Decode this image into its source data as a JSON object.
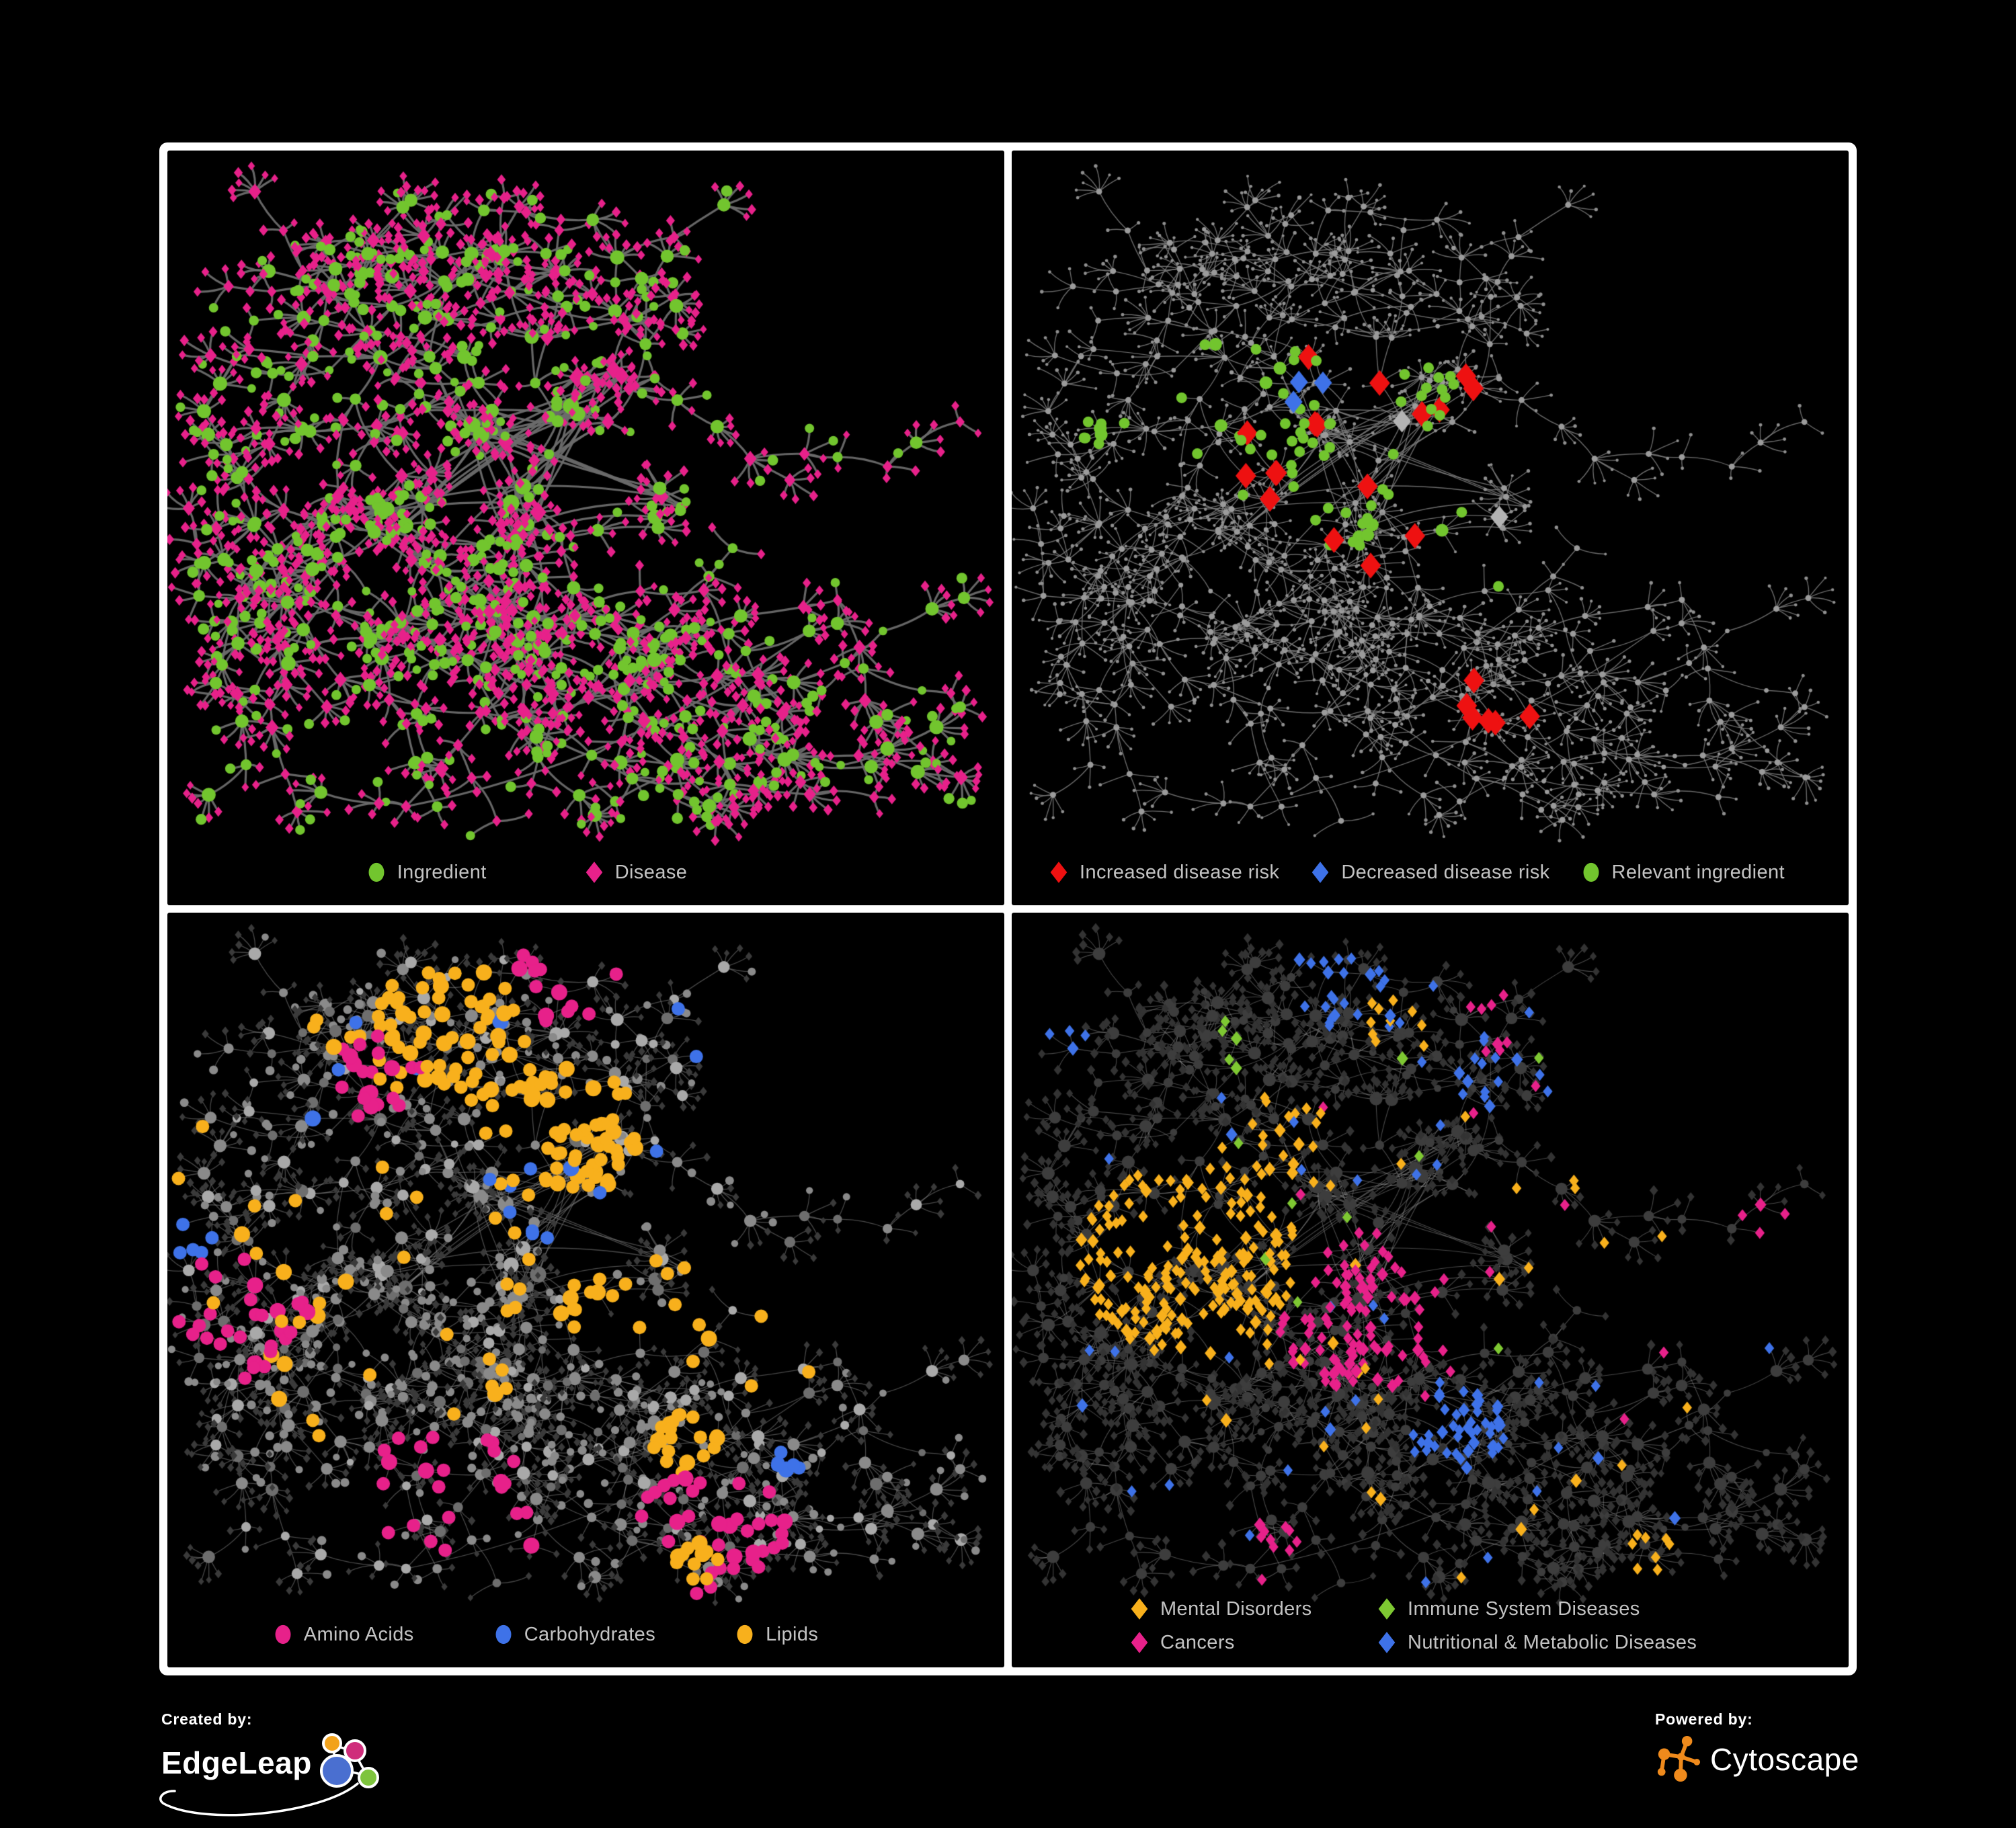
{
  "page": {
    "background": "#000000",
    "frame_color": "#ffffff",
    "legend_text_color": "#c3c3c3"
  },
  "panels": [
    {
      "name": "ingredient-disease-network",
      "legend": [
        {
          "shape": "circle",
          "color": "#72c52e",
          "label": "Ingredient"
        },
        {
          "shape": "diamond",
          "color": "#e7218a",
          "label": "Disease"
        }
      ]
    },
    {
      "name": "disease-risk-network",
      "legend": [
        {
          "shape": "diamond",
          "color": "#ee1111",
          "label": "Increased disease risk"
        },
        {
          "shape": "diamond",
          "color": "#3e72e8",
          "label": "Decreased disease risk"
        },
        {
          "shape": "circle",
          "color": "#72c52e",
          "label": "Relevant ingredient"
        }
      ]
    },
    {
      "name": "nutrient-class-network",
      "legend": [
        {
          "shape": "circle",
          "color": "#e7218a",
          "label": "Amino Acids"
        },
        {
          "shape": "circle",
          "color": "#3e72e8",
          "label": "Carbohydrates"
        },
        {
          "shape": "circle",
          "color": "#f8b01c",
          "label": "Lipids"
        }
      ]
    },
    {
      "name": "disease-class-network",
      "legend": [
        {
          "shape": "diamond",
          "color": "#f8b01c",
          "label": "Mental Disorders"
        },
        {
          "shape": "diamond",
          "color": "#7ec832",
          "label": "Immune System Diseases"
        },
        {
          "shape": "diamond",
          "color": "#e7218a",
          "label": "Cancers"
        },
        {
          "shape": "diamond",
          "color": "#3e72e8",
          "label": "Nutritional & Metabolic Diseases"
        }
      ]
    }
  ],
  "footer": {
    "created_by_label": "Created by:",
    "created_by_name": "EdgeLeap",
    "powered_by_label": "Powered by:",
    "powered_by_name": "Cytoscape",
    "edgeleap_colors": {
      "orange": "#f2a21b",
      "magenta": "#cf2d7b",
      "blue": "#4a6fd0",
      "green": "#7ec43d",
      "stroke": "#ffffff"
    },
    "cytoscape_color": "#ef8a1c"
  },
  "network": {
    "graph": {
      "seed": 1337,
      "cores": [
        [
          0.37,
          0.36,
          7,
          0.11
        ],
        [
          0.52,
          0.31,
          8,
          0.1
        ],
        [
          0.45,
          0.48,
          7,
          0.11
        ],
        [
          0.29,
          0.49,
          6,
          0.1
        ],
        [
          0.61,
          0.46,
          4,
          0.08
        ]
      ],
      "branches": 15,
      "cross_links": 7
    },
    "panel_styles": [
      {
        "seed": 11,
        "edge": {
          "color": "#6b6b6b",
          "width": 3.2,
          "alpha": 0.95
        },
        "hub": {
          "size_min": 6,
          "size_max": 15,
          "variants": [
            {
              "shape": "circle",
              "color": "#72c52e",
              "p": 0.58
            },
            {
              "shape": "diamond",
              "color": "#e7218a",
              "p": 0.42
            }
          ]
        },
        "leaf": {
          "size": 7.5,
          "variants": [
            {
              "shape": "diamond",
              "color": "#e7218a",
              "p": 0.84
            },
            {
              "shape": "circle",
              "color": "#72c52e",
              "p": 0.16
            }
          ]
        },
        "overlays": []
      },
      {
        "seed": 22,
        "edge": {
          "color": "#7d7d7d",
          "width": 1.4,
          "alpha": 0.85
        },
        "hub": {
          "size_min": 3,
          "size_max": 4.5,
          "variants": [
            {
              "shape": "circle",
              "color": "#9b9b9b",
              "p": 1
            }
          ]
        },
        "leaf": {
          "size": 2.4,
          "variants": [
            {
              "shape": "circle",
              "color": "#8f8f8f",
              "p": 1
            }
          ]
        },
        "overlays": [
          {
            "shape": "diamond",
            "color": "#ee1111",
            "size": 16,
            "target": "hub",
            "anchors": [
              [
                0.42,
                0.4,
                0.17,
                0.38
              ],
              [
                0.57,
                0.36,
                0.08,
                0.3
              ],
              [
                0.57,
                0.74,
                0.06,
                0.5
              ],
              [
                0.7,
                0.48,
                0.05,
                0.3
              ]
            ]
          },
          {
            "shape": "diamond",
            "color": "#3e72e8",
            "size": 14,
            "target": "hub",
            "anchors": [
              [
                0.82,
                0.34,
                0.035,
                0.9
              ],
              [
                0.3,
                0.38,
                0.05,
                0.5
              ],
              [
                0.35,
                0.3,
                0.03,
                0.5
              ]
            ]
          },
          {
            "shape": "diamond",
            "color": "#b3b3b3",
            "size": 14,
            "target": "hub",
            "anchors": [
              [
                0.44,
                0.44,
                0.16,
                0.1
              ]
            ]
          },
          {
            "shape": "circle",
            "color": "#72c52e",
            "size": 8,
            "target": "any",
            "anchors": [
              [
                0.42,
                0.38,
                0.15,
                0.22
              ],
              [
                0.25,
                0.33,
                0.12,
                0.12
              ],
              [
                0.83,
                0.33,
                0.02,
                0.9
              ],
              [
                0.1,
                0.36,
                0.02,
                0.9
              ],
              [
                0.55,
                0.55,
                0.04,
                0.4
              ]
            ]
          }
        ]
      },
      {
        "seed": 33,
        "edge": {
          "color": "#8f8f8f",
          "width": 1.3,
          "alpha": 0.5
        },
        "hub": {
          "size_min": 5,
          "size_max": 12,
          "variants": [
            {
              "shape": "circle",
              "color": "#a9a9a9",
              "p": 0.35
            },
            {
              "shape": "circle",
              "color": "#8a8a8a",
              "p": 0.4
            },
            {
              "shape": "circle",
              "color": "#6e6e6e",
              "p": 0.25
            }
          ]
        },
        "leaf": {
          "size": 6,
          "variants": [
            {
              "shape": "diamond",
              "color": "#3a3a3a",
              "p": 0.82
            },
            {
              "shape": "circle",
              "color": "#8a8a8a",
              "p": 0.18
            }
          ]
        },
        "overlays": [
          {
            "shape": "circle",
            "color": "#f8b01c",
            "size": 10,
            "target": "any",
            "anchors": [
              [
                0.47,
                0.28,
                0.1,
                0.55
              ],
              [
                0.33,
                0.14,
                0.1,
                0.3
              ],
              [
                0.52,
                0.52,
                0.05,
                0.8
              ],
              [
                0.62,
                0.7,
                0.04,
                0.8
              ],
              [
                0.68,
                0.52,
                0.12,
                0.12
              ],
              [
                0.25,
                0.4,
                0.3,
                0.03
              ],
              [
                0.63,
                0.86,
                0.03,
                0.6
              ]
            ]
          },
          {
            "shape": "circle",
            "color": "#3e72e8",
            "size": 10,
            "target": "any",
            "anchors": [
              [
                0.46,
                0.37,
                0.06,
                0.5
              ],
              [
                0.74,
                0.72,
                0.02,
                0.9
              ],
              [
                0.03,
                0.42,
                0.03,
                0.8
              ],
              [
                0.4,
                0.2,
                0.25,
                0.02
              ]
            ]
          },
          {
            "shape": "circle",
            "color": "#e7218a",
            "size": 10,
            "target": "any",
            "anchors": [
              [
                0.07,
                0.52,
                0.1,
                0.3
              ],
              [
                0.33,
                0.8,
                0.12,
                0.18
              ],
              [
                0.65,
                0.82,
                0.09,
                0.25
              ],
              [
                0.92,
                0.28,
                0.08,
                0.25
              ],
              [
                0.47,
                0.06,
                0.07,
                0.35
              ],
              [
                0.25,
                0.2,
                0.06,
                0.3
              ],
              [
                0.96,
                0.47,
                0.04,
                0.5
              ]
            ]
          }
        ]
      },
      {
        "seed": 44,
        "edge": {
          "color": "#9f9f9f",
          "width": 1.1,
          "alpha": 0.45
        },
        "hub": {
          "size_min": 5,
          "size_max": 10,
          "variants": [
            {
              "shape": "circle",
              "color": "#3d3d3d",
              "p": 1
            }
          ]
        },
        "leaf": {
          "size": 7,
          "variants": [
            {
              "shape": "diamond",
              "color": "#333333",
              "p": 1
            }
          ]
        },
        "overlays": [
          {
            "shape": "diamond",
            "color": "#f8b01c",
            "size": 9,
            "target": "any",
            "anchors": [
              [
                0.21,
                0.45,
                0.13,
                0.75
              ],
              [
                0.33,
                0.3,
                0.08,
                0.2
              ],
              [
                0.47,
                0.12,
                0.05,
                0.4
              ],
              [
                0.76,
                0.85,
                0.03,
                0.6
              ],
              [
                0.5,
                0.6,
                0.35,
                0.02
              ]
            ]
          },
          {
            "shape": "diamond",
            "color": "#e7218a",
            "size": 9,
            "target": "any",
            "anchors": [
              [
                0.42,
                0.52,
                0.11,
                0.5
              ],
              [
                0.91,
                0.42,
                0.05,
                0.65
              ],
              [
                0.56,
                0.12,
                0.05,
                0.4
              ],
              [
                0.3,
                0.85,
                0.05,
                0.3
              ],
              [
                0.6,
                0.4,
                0.3,
                0.02
              ]
            ]
          },
          {
            "shape": "diamond",
            "color": "#3e72e8",
            "size": 9,
            "target": "any",
            "anchors": [
              [
                0.53,
                0.68,
                0.06,
                0.6
              ],
              [
                0.84,
                0.55,
                0.09,
                0.35
              ],
              [
                0.65,
                0.18,
                0.12,
                0.25
              ],
              [
                0.42,
                0.05,
                0.09,
                0.3
              ],
              [
                0.06,
                0.12,
                0.05,
                0.35
              ],
              [
                0.88,
                0.25,
                0.06,
                0.4
              ],
              [
                0.5,
                0.5,
                0.45,
                0.02
              ]
            ]
          },
          {
            "shape": "diamond",
            "color": "#7ec832",
            "size": 9,
            "target": "any",
            "anchors": [
              [
                0.38,
                0.46,
                0.1,
                0.06
              ],
              [
                0.6,
                0.55,
                0.05,
                0.15
              ],
              [
                0.45,
                0.2,
                0.3,
                0.01
              ]
            ]
          }
        ]
      }
    ]
  }
}
